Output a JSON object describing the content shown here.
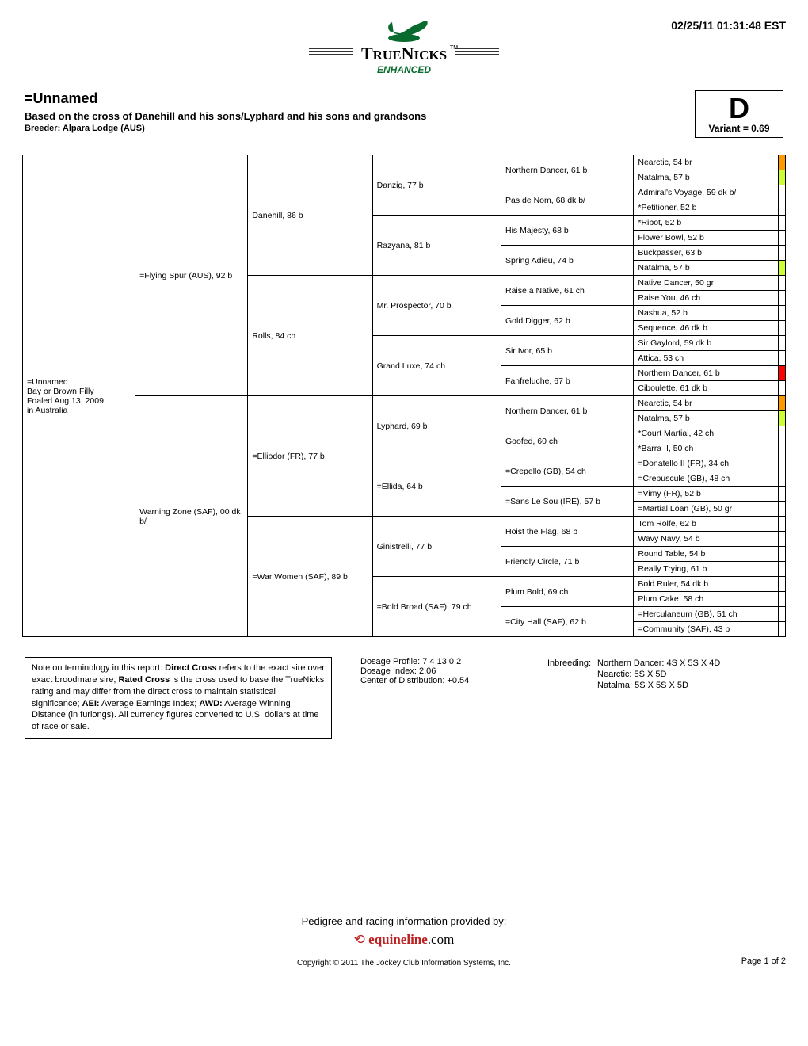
{
  "timestamp": "02/25/11 01:31:48 EST",
  "logo": {
    "main": "TRUENICKS",
    "sub": "ENHANCED",
    "tm": "TM"
  },
  "header": {
    "horse_name": "=Unnamed",
    "cross": "Based on the cross of Danehill and his sons/Lyphard and his sons and grandsons",
    "breeder": "Breeder: Alpara Lodge (AUS)",
    "grade": "D",
    "variant": "Variant = 0.69"
  },
  "subject": "=Unnamed\nBay or Brown Filly\nFoaled Aug 13, 2009\nin Australia",
  "ped": {
    "g1": [
      "=Flying Spur (AUS), 92 b",
      "Warning Zone (SAF), 00 dk b/"
    ],
    "g2": [
      "Danehill, 86 b",
      "Rolls, 84 ch",
      "=Elliodor (FR), 77 b",
      "=War Women (SAF), 89 b"
    ],
    "g3": [
      "Danzig, 77 b",
      "Razyana, 81 b",
      "Mr. Prospector, 70 b",
      "Grand Luxe, 74 ch",
      "Lyphard, 69 b",
      "=Ellida, 64 b",
      "Ginistrelli, 77 b",
      "=Bold Broad (SAF), 79 ch"
    ],
    "g4": [
      "Northern Dancer, 61 b",
      "Pas de Nom, 68 dk b/",
      "His Majesty, 68 b",
      "Spring Adieu, 74 b",
      "Raise a Native, 61 ch",
      "Gold Digger, 62 b",
      "Sir Ivor, 65 b",
      "Fanfreluche, 67 b",
      "Northern Dancer, 61 b",
      "Goofed, 60 ch",
      "=Crepello (GB), 54 ch",
      "=Sans Le Sou (IRE), 57 b",
      "Hoist the Flag, 68 b",
      "Friendly Circle, 71 b",
      "Plum Bold, 69 ch",
      "=City Hall (SAF), 62 b"
    ],
    "g5": [
      "Nearctic, 54 br",
      "Natalma, 57 b",
      "Admiral's Voyage, 59 dk b/",
      "*Petitioner, 52 b",
      "*Ribot, 52 b",
      "Flower Bowl, 52 b",
      "Buckpasser, 63 b",
      "Natalma, 57 b",
      "Native Dancer, 50 gr",
      "Raise You, 46 ch",
      "Nashua, 52 b",
      "Sequence, 46 dk b",
      "Sir Gaylord, 59 dk b",
      "Attica, 53 ch",
      "Northern Dancer, 61 b",
      "Ciboulette, 61 dk b",
      "Nearctic, 54 br",
      "Natalma, 57 b",
      "*Court Martial, 42 ch",
      "*Barra II, 50 ch",
      "=Donatello II (FR), 34 ch",
      "=Crepuscule (GB), 48 ch",
      "=Vimy (FR), 52 b",
      "=Martial Loan (GB), 50 gr",
      "Tom Rolfe, 62 b",
      "Wavy Navy, 54 b",
      "Round Table, 54 b",
      "Really Trying, 61 b",
      "Bold Ruler, 54 dk b",
      "Plum Cake, 58 ch",
      "=Herculaneum (GB), 51 ch",
      "=Community (SAF), 43 b"
    ],
    "g5_colors": [
      "#ff9900",
      "#ccff33",
      "",
      "",
      "",
      "",
      "",
      "#ccff33",
      "",
      "",
      "",
      "",
      "",
      "",
      "#ff0000",
      "",
      "#ff9900",
      "#ccff33",
      "",
      "",
      "",
      "",
      "",
      "",
      "",
      "",
      "",
      "",
      "",
      "",
      "",
      ""
    ]
  },
  "note_box": "Note on terminology in this report: Direct Cross refers to the exact sire over exact broodmare sire; Rated Cross is the cross used to base the TrueNicks rating and may differ from the direct cross to maintain statistical significance; AEI: Average Earnings Index; AWD: Average Winning Distance (in furlongs). All currency figures converted to U.S. dollars at time of race or sale.",
  "dosage": {
    "profile": "Dosage Profile: 7 4 13 0 2",
    "index": "Dosage Index: 2.06",
    "cd": "Center of Distribution: +0.54"
  },
  "inbreeding_label": "Inbreeding:",
  "inbreeding": [
    {
      "name": "Northern Dancer: 4S X 5S X 4D"
    },
    {
      "name": "Nearctic: 5S X 5D"
    },
    {
      "name": "Natalma: 5S X 5S X 5D"
    }
  ],
  "provided": "Pedigree and racing information provided by:",
  "equineline": {
    "pre": "equineline",
    "suf": ".com"
  },
  "copyright": "Copyright © 2011 The Jockey Club Information Systems, Inc.",
  "page": "Page 1 of 2"
}
